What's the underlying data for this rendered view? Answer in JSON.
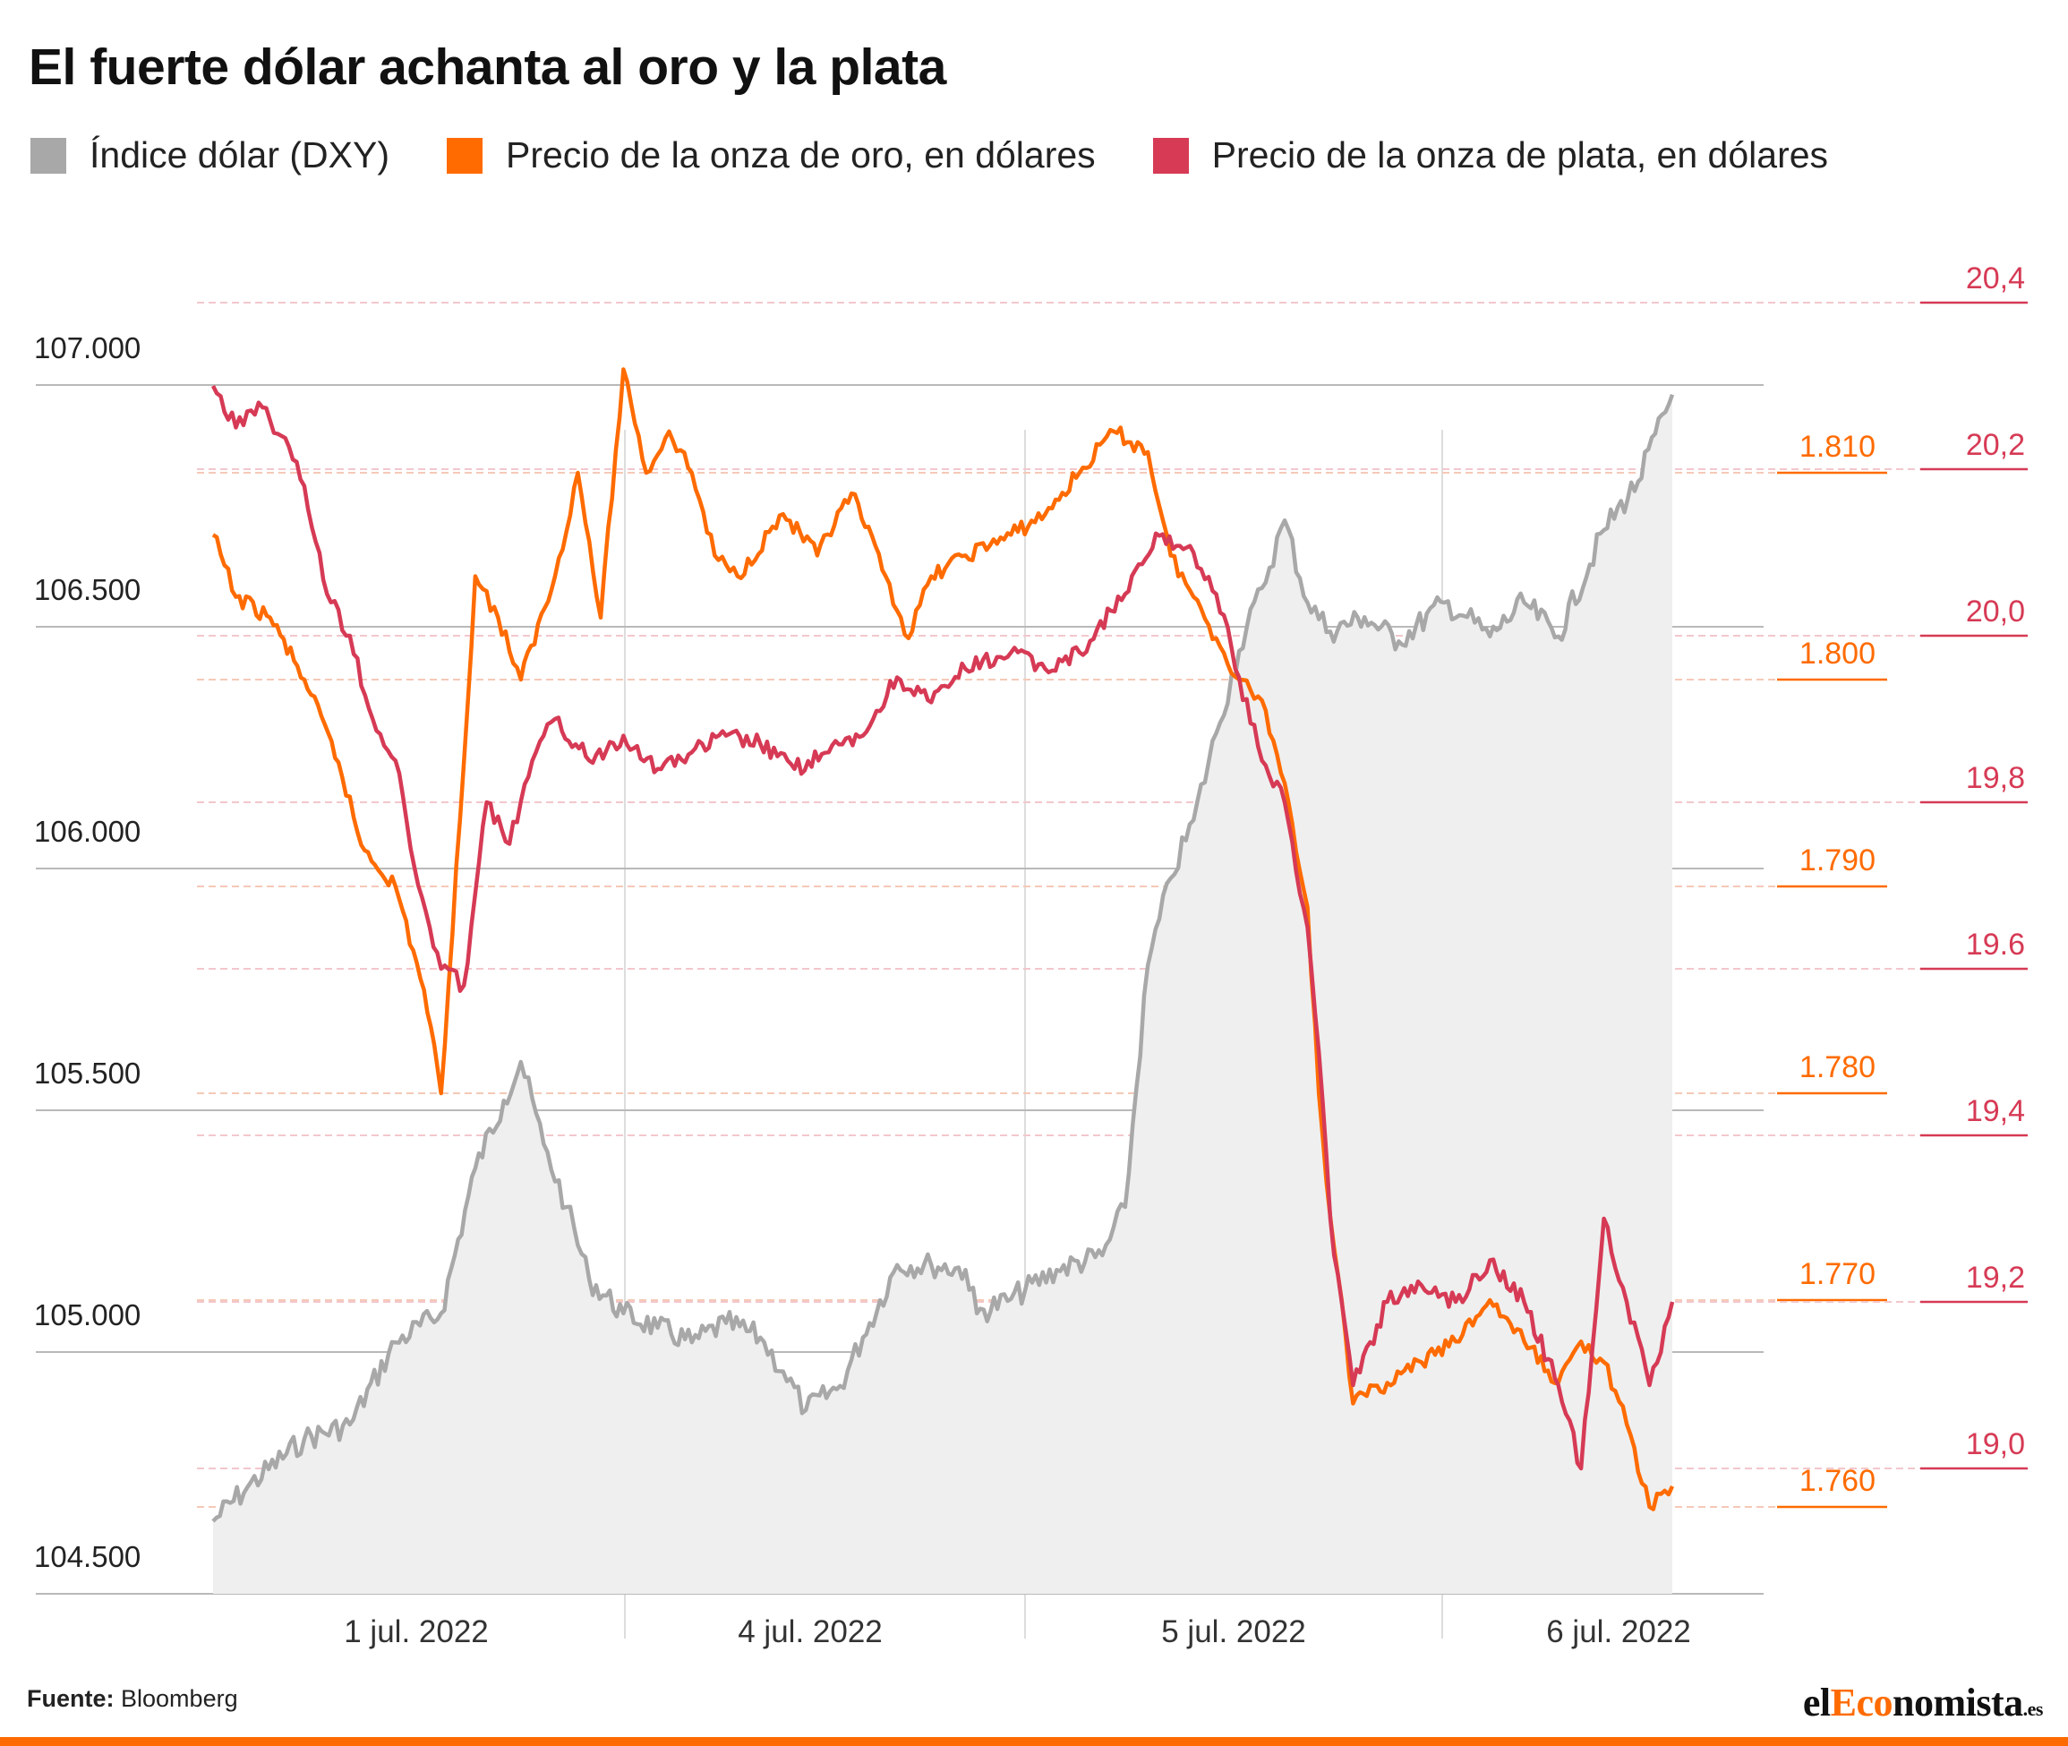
{
  "title": "El fuerte dólar achanta al oro y la plata",
  "legend": [
    {
      "label": "Índice dólar (DXY)",
      "color": "#a8a8a8"
    },
    {
      "label": "Precio de la onza de oro, en dólares",
      "color": "#ff6b00"
    },
    {
      "label": "Precio de la onza de plata, en dólares",
      "color": "#d63a55"
    }
  ],
  "source": {
    "label": "Fuente:",
    "value": "Bloomberg"
  },
  "logo": {
    "a": "el",
    "b": "Eco",
    "c": "nomista",
    "d": ".es"
  },
  "chart_data": {
    "type": "line",
    "title": "El fuerte dólar achanta al oro y la plata",
    "x_labels": [
      "1 jul. 2022",
      "4 jul. 2022",
      "5 jul. 2022",
      "6 jul. 2022"
    ],
    "axes": {
      "dxy": {
        "ticks": [
          "104.500",
          "105.000",
          "105.500",
          "106.000",
          "106.500",
          "107.000"
        ],
        "ylim": [
          104500,
          107000
        ],
        "side": "left"
      },
      "gold": {
        "ticks": [
          "1.760",
          "1.770",
          "1.780",
          "1.790",
          "1.800",
          "1.810"
        ],
        "ylim": [
          1754.6,
          1819.9
        ],
        "side": "right-inner"
      },
      "silver": {
        "ticks": [
          "19,0",
          "19,2",
          "19,4",
          "19.6",
          "19,8",
          "20,0",
          "20,2",
          "20,4"
        ],
        "ylim": [
          18.855,
          20.547
        ],
        "side": "right-outer"
      }
    },
    "series": [
      {
        "name": "Índice dólar (DXY)",
        "axis": "dxy",
        "color": "#a8a8a8",
        "area": true,
        "points": [
          [
            0,
            104650
          ],
          [
            0.03,
            104720
          ],
          [
            0.08,
            104820
          ],
          [
            0.12,
            104850
          ],
          [
            0.16,
            105020
          ],
          [
            0.2,
            105080
          ],
          [
            0.23,
            105380
          ],
          [
            0.255,
            105520
          ],
          [
            0.27,
            105600
          ],
          [
            0.29,
            105430
          ],
          [
            0.31,
            105300
          ],
          [
            0.33,
            105150
          ],
          [
            0.36,
            105080
          ],
          [
            0.39,
            105050
          ],
          [
            0.42,
            105020
          ],
          [
            0.45,
            105060
          ],
          [
            0.48,
            105030
          ],
          [
            0.5,
            104960
          ],
          [
            0.52,
            104880
          ],
          [
            0.55,
            104930
          ],
          [
            0.57,
            105030
          ],
          [
            0.6,
            105180
          ],
          [
            0.63,
            105180
          ],
          [
            0.66,
            105170
          ],
          [
            0.67,
            105080
          ],
          [
            0.7,
            105110
          ],
          [
            0.74,
            105170
          ],
          [
            0.78,
            105200
          ],
          [
            0.8,
            105300
          ],
          [
            0.82,
            105800
          ],
          [
            0.84,
            105980
          ],
          [
            0.86,
            106100
          ],
          [
            0.88,
            106280
          ],
          [
            0.9,
            106450
          ],
          [
            0.92,
            106580
          ],
          [
            0.94,
            106720
          ],
          [
            0.96,
            106550
          ],
          [
            0.98,
            106490
          ],
          [
            1.01,
            106520
          ],
          [
            1.04,
            106470
          ],
          [
            1.08,
            106550
          ],
          [
            1.1,
            106520
          ],
          [
            1.12,
            106480
          ],
          [
            1.15,
            106550
          ],
          [
            1.18,
            106480
          ],
          [
            1.22,
            106700
          ],
          [
            1.25,
            106800
          ],
          [
            1.28,
            106980
          ]
        ]
      },
      {
        "name": "Precio de la onza de oro, en dólares",
        "axis": "gold",
        "color": "#ff6b00",
        "points": [
          [
            0,
            1807
          ],
          [
            0.02,
            1804
          ],
          [
            0.05,
            1803
          ],
          [
            0.08,
            1800
          ],
          [
            0.11,
            1796
          ],
          [
            0.13,
            1792
          ],
          [
            0.16,
            1790
          ],
          [
            0.185,
            1785
          ],
          [
            0.2,
            1780
          ],
          [
            0.22,
            1796
          ],
          [
            0.23,
            1805
          ],
          [
            0.25,
            1803
          ],
          [
            0.27,
            1800
          ],
          [
            0.3,
            1805
          ],
          [
            0.32,
            1810
          ],
          [
            0.34,
            1803
          ],
          [
            0.36,
            1815
          ],
          [
            0.38,
            1810
          ],
          [
            0.4,
            1812
          ],
          [
            0.42,
            1810
          ],
          [
            0.44,
            1806
          ],
          [
            0.46,
            1805
          ],
          [
            0.5,
            1808
          ],
          [
            0.53,
            1806
          ],
          [
            0.56,
            1809
          ],
          [
            0.59,
            1805
          ],
          [
            0.61,
            1802
          ],
          [
            0.63,
            1805
          ],
          [
            0.66,
            1806
          ],
          [
            0.7,
            1807
          ],
          [
            0.73,
            1808
          ],
          [
            0.76,
            1810
          ],
          [
            0.79,
            1812
          ],
          [
            0.82,
            1811
          ],
          [
            0.84,
            1806
          ],
          [
            0.86,
            1804
          ],
          [
            0.88,
            1802
          ],
          [
            0.9,
            1800
          ],
          [
            0.92,
            1799
          ],
          [
            0.94,
            1795
          ],
          [
            0.96,
            1789
          ],
          [
            0.97,
            1780
          ],
          [
            0.98,
            1774
          ],
          [
            0.99,
            1770
          ],
          [
            1.0,
            1765
          ],
          [
            1.03,
            1766
          ],
          [
            1.06,
            1767
          ],
          [
            1.09,
            1768
          ],
          [
            1.12,
            1770
          ],
          [
            1.15,
            1768
          ],
          [
            1.18,
            1766
          ],
          [
            1.2,
            1768
          ],
          [
            1.22,
            1767
          ],
          [
            1.24,
            1764
          ],
          [
            1.26,
            1760
          ],
          [
            1.28,
            1761
          ]
        ]
      },
      {
        "name": "Precio de la onza de plata, en dólares",
        "axis": "silver",
        "color": "#d63a55",
        "points": [
          [
            0,
            20.3
          ],
          [
            0.02,
            20.25
          ],
          [
            0.04,
            20.28
          ],
          [
            0.06,
            20.24
          ],
          [
            0.08,
            20.18
          ],
          [
            0.1,
            20.05
          ],
          [
            0.12,
            20.0
          ],
          [
            0.14,
            19.9
          ],
          [
            0.16,
            19.85
          ],
          [
            0.18,
            19.7
          ],
          [
            0.2,
            19.6
          ],
          [
            0.22,
            19.58
          ],
          [
            0.24,
            19.8
          ],
          [
            0.26,
            19.75
          ],
          [
            0.28,
            19.85
          ],
          [
            0.3,
            19.9
          ],
          [
            0.33,
            19.85
          ],
          [
            0.36,
            19.88
          ],
          [
            0.39,
            19.84
          ],
          [
            0.42,
            19.86
          ],
          [
            0.45,
            19.88
          ],
          [
            0.48,
            19.87
          ],
          [
            0.51,
            19.84
          ],
          [
            0.54,
            19.86
          ],
          [
            0.57,
            19.88
          ],
          [
            0.6,
            19.95
          ],
          [
            0.63,
            19.92
          ],
          [
            0.66,
            19.96
          ],
          [
            0.7,
            19.98
          ],
          [
            0.73,
            19.96
          ],
          [
            0.76,
            19.98
          ],
          [
            0.8,
            20.05
          ],
          [
            0.83,
            20.12
          ],
          [
            0.86,
            20.1
          ],
          [
            0.88,
            20.05
          ],
          [
            0.9,
            19.95
          ],
          [
            0.92,
            19.85
          ],
          [
            0.94,
            19.8
          ],
          [
            0.96,
            19.65
          ],
          [
            0.97,
            19.5
          ],
          [
            0.98,
            19.3
          ],
          [
            0.99,
            19.2
          ],
          [
            1.0,
            19.1
          ],
          [
            1.03,
            19.2
          ],
          [
            1.06,
            19.22
          ],
          [
            1.09,
            19.2
          ],
          [
            1.12,
            19.25
          ],
          [
            1.15,
            19.2
          ],
          [
            1.18,
            19.1
          ],
          [
            1.2,
            19.0
          ],
          [
            1.22,
            19.3
          ],
          [
            1.24,
            19.2
          ],
          [
            1.26,
            19.1
          ],
          [
            1.28,
            19.2
          ]
        ]
      }
    ]
  }
}
